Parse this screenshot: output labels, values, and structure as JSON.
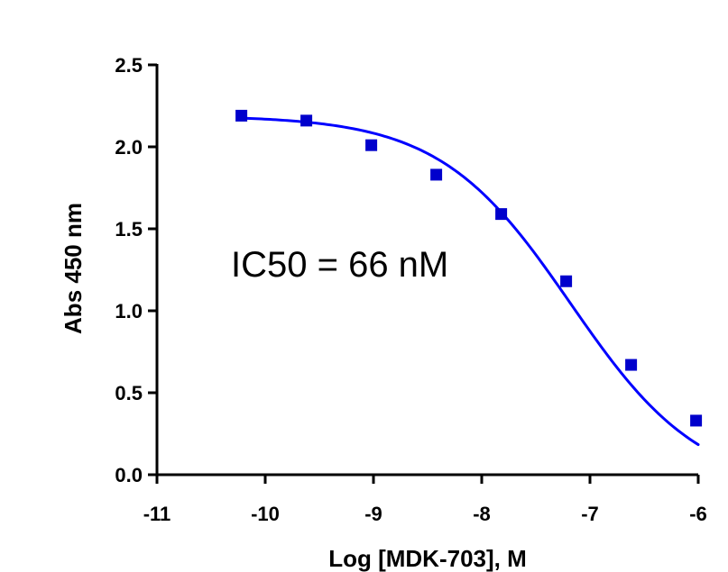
{
  "chart_data": {
    "type": "scatter",
    "title": "",
    "xlabel": "Log [MDK-703], M",
    "ylabel": "Abs 450 nm",
    "xlim": [
      -11,
      -6
    ],
    "ylim": [
      0,
      2.5
    ],
    "x_ticks": [
      -11,
      -10,
      -9,
      -8,
      -7,
      -6
    ],
    "x_tick_labels": [
      "-11",
      "-10",
      "-9",
      "-8",
      "-7",
      "-6"
    ],
    "y_ticks": [
      0,
      0.5,
      1,
      1.5,
      2,
      2.5
    ],
    "y_tick_labels": [
      "0.0",
      "0.5",
      "1.0",
      "1.5",
      "2.0",
      "2.5"
    ],
    "grid": false,
    "series": [
      {
        "type": "scatter",
        "marker": "square",
        "color": "#0000cc",
        "x": [
          -10.22,
          -9.62,
          -9.02,
          -8.42,
          -7.82,
          -7.22,
          -6.62,
          -6.02
        ],
        "y": [
          2.19,
          2.16,
          2.01,
          1.83,
          1.59,
          1.18,
          0.67,
          0.33
        ]
      },
      {
        "type": "line",
        "color": "#0000ff",
        "fit": "four-parameter logistic",
        "params": {
          "top": 2.19,
          "bottom": -0.1,
          "log_ic50": -7.18,
          "hill_slope": -0.72
        },
        "x_range": [
          -10.22,
          -6.0
        ]
      }
    ],
    "annotations": [
      {
        "text": "IC50 = 66 nM"
      }
    ]
  }
}
